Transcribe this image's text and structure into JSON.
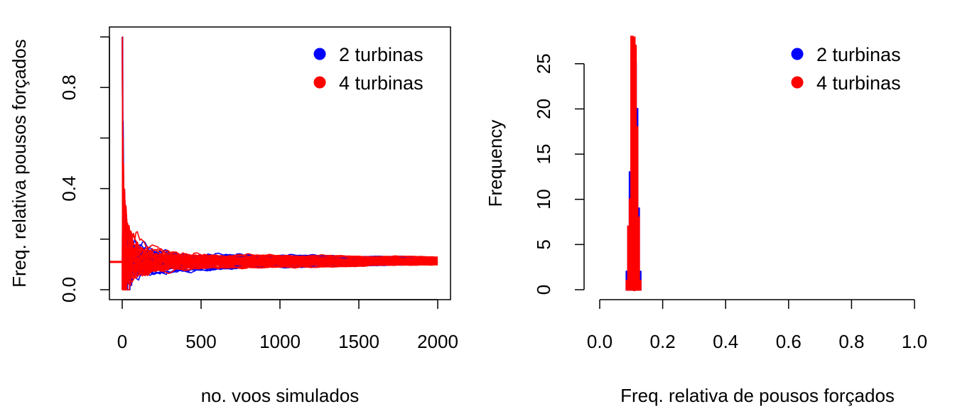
{
  "chart_data": [
    {
      "type": "line",
      "xlabel": "no. voos simulados",
      "ylabel": "Freq. relativa pousos forçados",
      "xlim": [
        0,
        2000
      ],
      "ylim": [
        0,
        1
      ],
      "xticks": [
        "0",
        "500",
        "1000",
        "1500",
        "2000"
      ],
      "xtick_values": [
        0,
        500,
        1000,
        1500,
        2000
      ],
      "yticks": [
        "0.0",
        "0.4",
        "0.8"
      ],
      "ytick_values": [
        0,
        0.4,
        0.8
      ],
      "legend_position": "top-right",
      "reference_line": {
        "y": 0.11,
        "color": "#ff0000"
      },
      "series": [
        {
          "name": "2 turbinas",
          "color": "#0000ff",
          "num_runs": 50,
          "converges_to": 0.11
        },
        {
          "name": "4 turbinas",
          "color": "#ff0000",
          "num_runs": 50,
          "converges_to": 0.11
        }
      ]
    },
    {
      "type": "bar",
      "subtype": "histogram",
      "xlabel": "Freq. relativa de pousos forçados",
      "ylabel": "Frequency",
      "xlim": [
        0,
        1
      ],
      "ylim": [
        0,
        28
      ],
      "xticks": [
        "0.0",
        "0.2",
        "0.4",
        "0.6",
        "0.8",
        "1.0"
      ],
      "xtick_values": [
        0,
        0.2,
        0.4,
        0.6,
        0.8,
        1.0
      ],
      "yticks": [
        "0",
        "5",
        "10",
        "15",
        "20",
        "25"
      ],
      "ytick_values": [
        0,
        5,
        10,
        15,
        20,
        25
      ],
      "legend_position": "top-right",
      "reference_line": {
        "x": 0.11,
        "color": "#ff0000"
      },
      "series": [
        {
          "name": "2 turbinas",
          "color": "#0000ff",
          "bins": [
            {
              "x0": 0.085,
              "x1": 0.09,
              "count": 2
            },
            {
              "x0": 0.09,
              "x1": 0.095,
              "count": 7
            },
            {
              "x0": 0.095,
              "x1": 0.1,
              "count": 13
            },
            {
              "x0": 0.1,
              "x1": 0.105,
              "count": 26
            },
            {
              "x0": 0.105,
              "x1": 0.11,
              "count": 24
            },
            {
              "x0": 0.11,
              "x1": 0.115,
              "count": 25
            },
            {
              "x0": 0.115,
              "x1": 0.12,
              "count": 20
            },
            {
              "x0": 0.12,
              "x1": 0.125,
              "count": 9
            },
            {
              "x0": 0.125,
              "x1": 0.13,
              "count": 2
            }
          ]
        },
        {
          "name": "4 turbinas",
          "color": "#ff0000",
          "bins": [
            {
              "x0": 0.085,
              "x1": 0.09,
              "count": 1
            },
            {
              "x0": 0.09,
              "x1": 0.095,
              "count": 7
            },
            {
              "x0": 0.095,
              "x1": 0.1,
              "count": 10
            },
            {
              "x0": 0.1,
              "x1": 0.105,
              "count": 28
            },
            {
              "x0": 0.105,
              "x1": 0.11,
              "count": 22
            },
            {
              "x0": 0.11,
              "x1": 0.115,
              "count": 27
            },
            {
              "x0": 0.115,
              "x1": 0.12,
              "count": 18
            },
            {
              "x0": 0.12,
              "x1": 0.125,
              "count": 8
            },
            {
              "x0": 0.125,
              "x1": 0.13,
              "count": 1
            }
          ]
        }
      ]
    }
  ]
}
